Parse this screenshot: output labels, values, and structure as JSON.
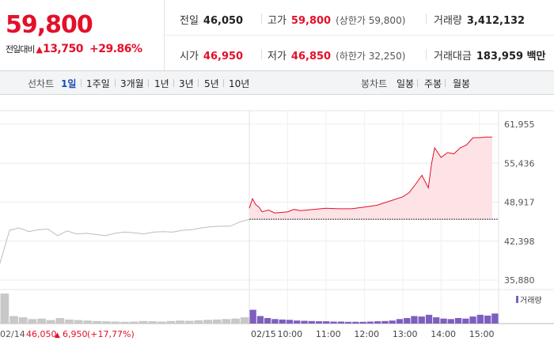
{
  "quote": {
    "price": "59,800",
    "change_label": "전일대비",
    "change_arrow": "up-arrow-icon",
    "change_value": "13,750",
    "change_pct": "+29.86%",
    "prev_close": {
      "label": "전일",
      "value": "46,050"
    },
    "high": {
      "label": "고가",
      "value": "59,800",
      "sub": "(상한가 59,800)"
    },
    "volume": {
      "label": "거래량",
      "value": "3,412,132"
    },
    "open": {
      "label": "시가",
      "value": "46,950"
    },
    "low": {
      "label": "저가",
      "value": "46,850",
      "sub": "(하한가 32,250)"
    },
    "amount": {
      "label": "거래대금",
      "value": "183,959 백만"
    }
  },
  "line_tabs": {
    "label": "선차트",
    "items": [
      "1일",
      "1주일",
      "3개월",
      "1년",
      "3년",
      "5년",
      "10년"
    ],
    "active": "1일"
  },
  "candle_tabs": {
    "label": "봉차트",
    "items": [
      "일봉",
      "주봉",
      "월봉"
    ]
  },
  "colors": {
    "up": "#e4102a",
    "prev_line": "#bdbdbd",
    "fill": "#fde3e5",
    "volume": "#7e5fbf",
    "prev_volume": "#c8c8c8"
  },
  "chart_data": {
    "type": "line",
    "y_ticks": [
      "61,955",
      "55,436",
      "48,917",
      "42,398",
      "35,880"
    ],
    "ylim": [
      35880,
      61955
    ],
    "reference_line": 46050,
    "prev_day_label": "02/14",
    "prev_close_value": "46,050",
    "prev_change": "6,950",
    "prev_change_pct": "(+17,77%)",
    "x_ticks": [
      "02/15",
      "10:00",
      "11:00",
      "12:00",
      "13:00",
      "14:00",
      "15:00"
    ],
    "volume_legend": "거래량",
    "series": [
      {
        "day": "02/14",
        "x": [
          "09:00",
          "09:15",
          "09:30",
          "09:45",
          "10:00",
          "10:15",
          "10:30",
          "10:45",
          "11:00",
          "11:15",
          "11:30",
          "11:45",
          "12:00",
          "12:15",
          "12:30",
          "12:45",
          "13:00",
          "13:15",
          "13:30",
          "13:45",
          "14:00",
          "14:15",
          "14:30",
          "14:45",
          "15:00",
          "15:15",
          "15:30"
        ],
        "values": [
          38700,
          44200,
          44600,
          44000,
          44300,
          44400,
          43300,
          44100,
          43600,
          43700,
          43500,
          43300,
          43700,
          43900,
          43800,
          43600,
          43900,
          44000,
          43900,
          44200,
          44300,
          44600,
          44800,
          44900,
          44900,
          45600,
          46050
        ]
      },
      {
        "day": "02/15",
        "x": [
          "09:00",
          "09:05",
          "09:10",
          "09:15",
          "09:20",
          "09:30",
          "09:40",
          "09:50",
          "10:00",
          "10:10",
          "10:20",
          "10:40",
          "11:00",
          "11:20",
          "11:40",
          "12:00",
          "12:20",
          "12:40",
          "13:00",
          "13:10",
          "13:20",
          "13:30",
          "13:40",
          "13:45",
          "13:50",
          "14:00",
          "14:10",
          "14:20",
          "14:30",
          "14:40",
          "14:50",
          "15:00",
          "15:10",
          "15:20"
        ],
        "values": [
          47900,
          49500,
          48500,
          48100,
          47300,
          47600,
          47100,
          47200,
          47300,
          47700,
          47500,
          47700,
          47900,
          47800,
          47800,
          48100,
          48400,
          49100,
          49800,
          50500,
          51900,
          53400,
          51300,
          55300,
          58000,
          56400,
          57200,
          57000,
          58000,
          58500,
          59700,
          59700,
          59800,
          59800
        ]
      }
    ],
    "volume": [
      {
        "day": "02/14",
        "values": [
          120,
          30,
          25,
          18,
          20,
          14,
          22,
          16,
          14,
          12,
          10,
          9,
          8,
          7,
          8,
          10,
          9,
          8,
          10,
          12,
          11,
          13,
          15,
          16,
          18,
          20,
          25
        ]
      },
      {
        "day": "02/15",
        "values": [
          55,
          30,
          22,
          18,
          16,
          15,
          12,
          11,
          10,
          9,
          9,
          8,
          8,
          7,
          7,
          7,
          8,
          9,
          10,
          12,
          18,
          22,
          30,
          28,
          35,
          25,
          20,
          18,
          22,
          20,
          28,
          35,
          32,
          40
        ]
      }
    ]
  }
}
